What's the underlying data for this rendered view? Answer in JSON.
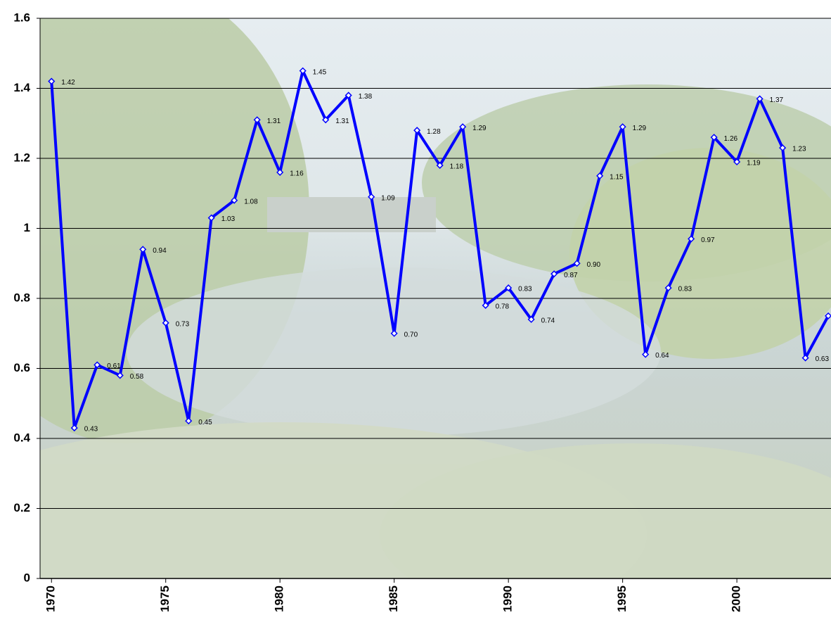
{
  "chart_data": {
    "type": "line",
    "x": [
      1970,
      1971,
      1972,
      1973,
      1974,
      1975,
      1976,
      1977,
      1978,
      1979,
      1980,
      1981,
      1982,
      1983,
      1984,
      1985,
      1986,
      1987,
      1988,
      1989,
      1990,
      1991,
      1992,
      1993,
      1994,
      1995,
      1996,
      1997,
      1998,
      1999,
      2000,
      2001,
      2002,
      2003,
      2004
    ],
    "series": [
      {
        "color": "#0000ff",
        "values": [
          1.42,
          0.43,
          0.61,
          0.58,
          0.94,
          0.73,
          0.45,
          1.03,
          1.08,
          1.31,
          1.16,
          1.45,
          1.31,
          1.38,
          1.09,
          0.7,
          1.28,
          1.18,
          1.29,
          0.78,
          0.83,
          0.74,
          0.87,
          0.9,
          1.15,
          1.29,
          0.64,
          0.83,
          0.97,
          1.26,
          1.19,
          1.37,
          1.23,
          0.63,
          0.75
        ],
        "value_labels": [
          "1.42",
          "0.43",
          "0.61",
          "0.58",
          "0.94",
          "0.73",
          "0.45",
          "1.03",
          "1.08",
          "1.31",
          "1.16",
          "1.45",
          "1.31",
          "1.38",
          "1.09",
          "0.70",
          "1.28",
          "1.18",
          "1.29",
          "0.78",
          "0.83",
          "0.74",
          "0.87",
          "0.90",
          "1.15",
          "1.29",
          "0.64",
          "0.83",
          "0.97",
          "1.26",
          "1.19",
          "1.37",
          "1.23",
          "0.63",
          "0.75"
        ]
      }
    ],
    "xlim": [
      1969.5,
      2004.12
    ],
    "xticks": [
      1970,
      1975,
      1980,
      1985,
      1990,
      1995,
      2000
    ],
    "ylim": [
      0,
      1.6
    ],
    "yticks": [
      0,
      0.2,
      0.4,
      0.6,
      0.8,
      1,
      1.2,
      1.4,
      1.6
    ],
    "grid": true
  }
}
